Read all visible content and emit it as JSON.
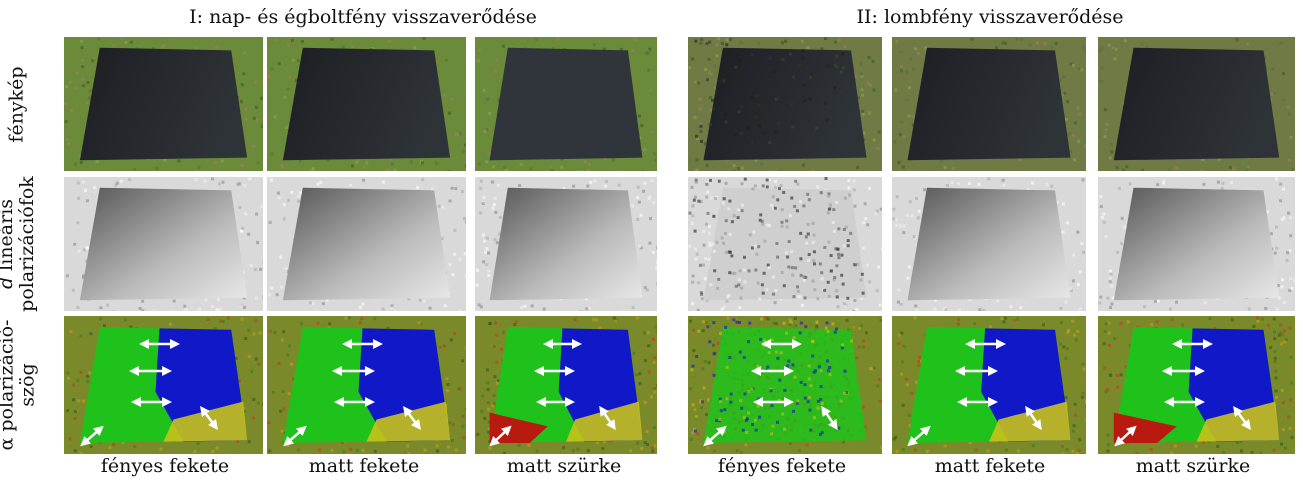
{
  "groups": [
    {
      "title": "I: nap- és égboltfény visszaverődése"
    },
    {
      "title": "II: lombfény visszaverődése"
    }
  ],
  "rows": {
    "photo": {
      "label": "fénykép"
    },
    "dop": {
      "symbol": "d",
      "line1": "lineáris",
      "line2": "polarizációfok"
    },
    "aop": {
      "symbol": "α",
      "line1": "polarizáció-",
      "line2": "szög"
    }
  },
  "columns": [
    {
      "label": "fényes fekete",
      "group": 1
    },
    {
      "label": "matt fekete",
      "group": 1
    },
    {
      "label": "matt szürke",
      "group": 1
    },
    {
      "label": "fényes fekete",
      "group": 2
    },
    {
      "label": "matt fekete",
      "group": 2
    },
    {
      "label": "matt szürke",
      "group": 2
    }
  ],
  "colors": {
    "grass": "#6b8a3a",
    "grass_dark": "#3d5a22",
    "soil": "#9c8160",
    "aop_green": "#1fc21a",
    "aop_blue": "#1018c8",
    "aop_yellow": "#c8c21a",
    "aop_red": "#b81a10",
    "arrow": "#ffffff"
  }
}
